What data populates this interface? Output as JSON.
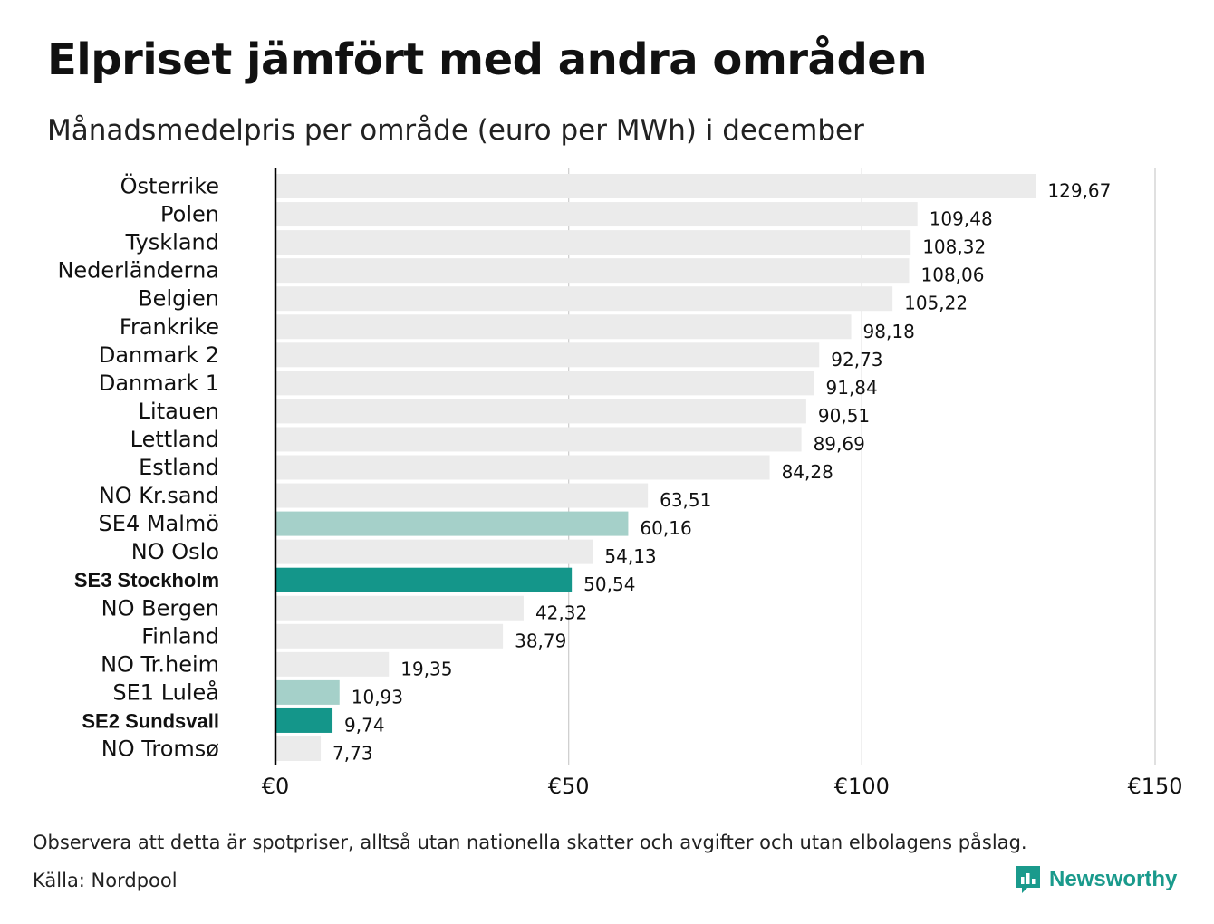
{
  "chart_data": {
    "type": "bar",
    "orientation": "horizontal",
    "title": "Elpriset jämfört med andra områden",
    "subtitle": "Månadsmedelpris per område (euro per MWh) i december",
    "categories": [
      "Österrike",
      "Polen",
      "Tyskland",
      "Nederländerna",
      "Belgien",
      "Frankrike",
      "Danmark  2",
      "Danmark  1",
      "Litauen",
      "Lettland",
      "Estland",
      "NO Kr.sand",
      "SE4  Malmö",
      "NO Oslo",
      "SE3 Stockholm",
      "NO Bergen",
      "Finland",
      "NO Tr.heim",
      "SE1  Luleå",
      "SE2 Sundsvall",
      "NO Tromsø"
    ],
    "values": [
      129.67,
      109.48,
      108.32,
      108.06,
      105.22,
      98.18,
      92.73,
      91.84,
      90.51,
      89.69,
      84.28,
      63.51,
      60.16,
      54.13,
      50.54,
      42.32,
      38.79,
      19.35,
      10.93,
      9.74,
      7.73
    ],
    "value_labels": [
      "129,67",
      "109,48",
      "108,32",
      "108,06",
      "105,22",
      "98,18",
      "92,73",
      "91,84",
      "90,51",
      "89,69",
      "84,28",
      "63,51",
      "60,16",
      "54,13",
      "50,54",
      "42,32",
      "38,79",
      "19,35",
      "10,93",
      "9,74",
      "7,73"
    ],
    "highlight_dark": [
      "SE3 Stockholm",
      "SE2 Sundsvall"
    ],
    "highlight_light": [
      "SE4  Malmö",
      "SE1  Luleå"
    ],
    "xlim": [
      0,
      150
    ],
    "xticks": [
      0,
      50,
      100,
      150
    ],
    "xtick_labels": [
      "€0",
      "€50",
      "€100",
      "€150"
    ],
    "grid": true,
    "colors": {
      "default": "#ebebeb",
      "highlight_light": "#a5d0c9",
      "highlight_dark": "#14968a"
    }
  },
  "footer": {
    "note": "Observera att detta är spotpriser, alltså utan nationella skatter och avgifter och utan elbolagens påslag.",
    "source": "Källa: Nordpool"
  },
  "brand": {
    "name": "Newsworthy",
    "icon": "newsworthy-logo-icon",
    "color": "#1a9a8c"
  }
}
